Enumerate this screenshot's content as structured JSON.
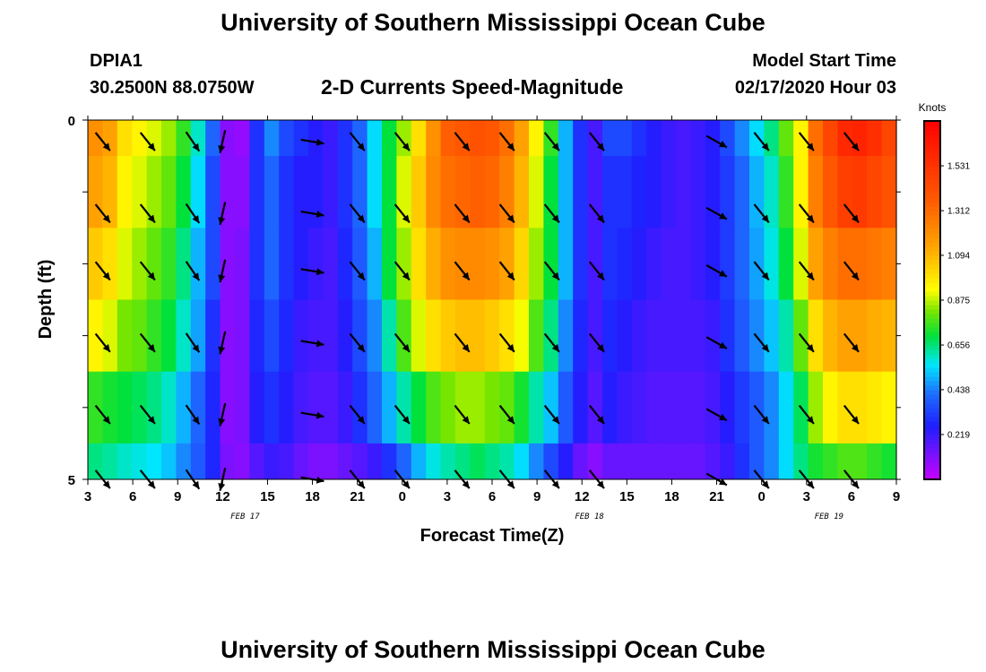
{
  "page": {
    "title_top": "University of Southern Mississippi Ocean Cube",
    "title_bottom": "University of Southern Mississippi Ocean Cube",
    "station_id": "DPIA1",
    "station_coords": "30.2500N 88.0750W",
    "plot_title": "2-D Currents Speed-Magnitude",
    "model_start_label": "Model Start Time",
    "model_start_value": "02/17/2020 Hour 03"
  },
  "chart_data": {
    "type": "heatmap",
    "title": "2-D Currents Speed-Magnitude",
    "xlabel": "Forecast Time(Z)",
    "ylabel": "Depth (ft)",
    "x_hours": [
      3,
      4,
      5,
      6,
      7,
      8,
      9,
      10,
      11,
      12,
      13,
      14,
      15,
      16,
      17,
      18,
      19,
      20,
      21,
      22,
      23,
      24,
      25,
      26,
      27,
      28,
      29,
      30,
      31,
      32,
      33,
      34,
      35,
      36,
      37,
      38,
      39,
      40,
      41,
      42,
      43,
      44,
      45,
      46,
      47,
      48,
      49,
      50,
      51,
      52,
      53,
      54,
      55,
      56,
      57
    ],
    "x_range": [
      3,
      57
    ],
    "x_ticks": [
      {
        "h": 3,
        "label": "3"
      },
      {
        "h": 6,
        "label": "6"
      },
      {
        "h": 9,
        "label": "9"
      },
      {
        "h": 12,
        "label": "12"
      },
      {
        "h": 15,
        "label": "15"
      },
      {
        "h": 18,
        "label": "18"
      },
      {
        "h": 21,
        "label": "21"
      },
      {
        "h": 24,
        "label": "0"
      },
      {
        "h": 27,
        "label": "3"
      },
      {
        "h": 30,
        "label": "6"
      },
      {
        "h": 33,
        "label": "9"
      },
      {
        "h": 36,
        "label": "12"
      },
      {
        "h": 39,
        "label": "15"
      },
      {
        "h": 42,
        "label": "18"
      },
      {
        "h": 45,
        "label": "21"
      },
      {
        "h": 48,
        "label": "0"
      },
      {
        "h": 51,
        "label": "3"
      },
      {
        "h": 54,
        "label": "6"
      },
      {
        "h": 57,
        "label": "9"
      }
    ],
    "date_labels": [
      {
        "h": 13.5,
        "label": "FEB 17"
      },
      {
        "h": 36.5,
        "label": "FEB 18"
      },
      {
        "h": 52.5,
        "label": "FEB 19"
      }
    ],
    "depth_range": [
      0,
      5
    ],
    "y_ticks": [
      {
        "d": 0,
        "label": "0"
      },
      {
        "d": 5,
        "label": "5"
      }
    ],
    "depth_levels": [
      0.5,
      1.5,
      2.5,
      3.5,
      4.5
    ],
    "speed_knots": [
      [
        1.2,
        1.15,
        1.0,
        0.95,
        0.9,
        0.85,
        0.75,
        0.6,
        0.4,
        0.1,
        0.08,
        0.3,
        0.45,
        0.35,
        0.3,
        0.25,
        0.22,
        0.3,
        0.4,
        0.55,
        0.7,
        0.85,
        1.0,
        1.2,
        1.35,
        1.38,
        1.4,
        1.38,
        1.3,
        1.15,
        0.95,
        0.75,
        0.5,
        0.3,
        0.2,
        0.35,
        0.35,
        0.3,
        0.25,
        0.22,
        0.2,
        0.22,
        0.25,
        0.35,
        0.45,
        0.55,
        0.65,
        0.8,
        0.95,
        1.3,
        1.45,
        1.58,
        1.6,
        1.55,
        1.45
      ],
      [
        1.15,
        1.1,
        0.95,
        0.9,
        0.85,
        0.8,
        0.7,
        0.55,
        0.35,
        0.1,
        0.1,
        0.3,
        0.4,
        0.3,
        0.25,
        0.25,
        0.22,
        0.3,
        0.4,
        0.55,
        0.7,
        0.9,
        1.05,
        1.22,
        1.3,
        1.33,
        1.35,
        1.33,
        1.25,
        1.1,
        0.9,
        0.7,
        0.5,
        0.3,
        0.2,
        0.3,
        0.3,
        0.27,
        0.25,
        0.22,
        0.2,
        0.22,
        0.25,
        0.32,
        0.4,
        0.5,
        0.6,
        0.75,
        0.95,
        1.25,
        1.38,
        1.48,
        1.5,
        1.45,
        1.4
      ],
      [
        1.05,
        1.0,
        0.9,
        0.85,
        0.8,
        0.75,
        0.65,
        0.5,
        0.35,
        0.1,
        0.12,
        0.3,
        0.4,
        0.3,
        0.25,
        0.22,
        0.2,
        0.28,
        0.38,
        0.5,
        0.7,
        0.85,
        1.0,
        1.12,
        1.2,
        1.22,
        1.22,
        1.2,
        1.15,
        1.02,
        0.85,
        0.7,
        0.5,
        0.3,
        0.2,
        0.3,
        0.28,
        0.25,
        0.22,
        0.2,
        0.2,
        0.22,
        0.25,
        0.32,
        0.4,
        0.48,
        0.58,
        0.7,
        0.9,
        1.15,
        1.25,
        1.3,
        1.3,
        1.28,
        1.25
      ],
      [
        0.95,
        0.9,
        0.82,
        0.8,
        0.75,
        0.7,
        0.6,
        0.48,
        0.3,
        0.1,
        0.12,
        0.28,
        0.35,
        0.28,
        0.22,
        0.2,
        0.2,
        0.25,
        0.35,
        0.45,
        0.62,
        0.78,
        0.9,
        1.0,
        1.05,
        1.08,
        1.08,
        1.05,
        1.0,
        0.92,
        0.78,
        0.65,
        0.45,
        0.28,
        0.2,
        0.28,
        0.25,
        0.22,
        0.2,
        0.2,
        0.2,
        0.2,
        0.22,
        0.3,
        0.38,
        0.45,
        0.52,
        0.62,
        0.8,
        1.0,
        1.1,
        1.15,
        1.15,
        1.12,
        1.1
      ],
      [
        0.75,
        0.72,
        0.7,
        0.68,
        0.65,
        0.6,
        0.5,
        0.4,
        0.28,
        0.1,
        0.12,
        0.25,
        0.3,
        0.25,
        0.2,
        0.18,
        0.18,
        0.22,
        0.3,
        0.4,
        0.5,
        0.62,
        0.7,
        0.78,
        0.82,
        0.85,
        0.85,
        0.82,
        0.8,
        0.72,
        0.62,
        0.52,
        0.38,
        0.25,
        0.18,
        0.25,
        0.22,
        0.2,
        0.18,
        0.18,
        0.18,
        0.18,
        0.2,
        0.25,
        0.32,
        0.38,
        0.45,
        0.55,
        0.68,
        0.85,
        0.95,
        1.0,
        1.0,
        0.98,
        0.95
      ],
      [
        0.65,
        0.63,
        0.6,
        0.58,
        0.56,
        0.52,
        0.45,
        0.38,
        0.28,
        0.12,
        0.1,
        0.18,
        0.22,
        0.2,
        0.15,
        0.12,
        0.12,
        0.15,
        0.18,
        0.22,
        0.3,
        0.4,
        0.5,
        0.58,
        0.62,
        0.65,
        0.68,
        0.65,
        0.62,
        0.55,
        0.45,
        0.35,
        0.25,
        0.15,
        0.1,
        0.15,
        0.15,
        0.15,
        0.15,
        0.15,
        0.15,
        0.15,
        0.18,
        0.22,
        0.3,
        0.38,
        0.45,
        0.55,
        0.65,
        0.72,
        0.75,
        0.78,
        0.78,
        0.75,
        0.72
      ]
    ],
    "speed_row_depths": [
      0,
      1,
      2,
      3,
      4,
      5
    ],
    "vector_rows": [
      0.2,
      1.2,
      2.0,
      3.0,
      4.0,
      4.9
    ],
    "vectors": [
      {
        "h": 4,
        "u": 0.6,
        "v": -0.75
      },
      {
        "h": 7,
        "u": 0.6,
        "v": -0.75
      },
      {
        "h": 10,
        "u": 0.55,
        "v": -0.8
      },
      {
        "h": 12,
        "u": -0.2,
        "v": -0.9
      },
      {
        "h": 18,
        "u": 0.9,
        "v": -0.15
      },
      {
        "h": 21,
        "u": 0.6,
        "v": -0.75
      },
      {
        "h": 24,
        "u": 0.6,
        "v": -0.75
      },
      {
        "h": 28,
        "u": 0.6,
        "v": -0.75
      },
      {
        "h": 31,
        "u": 0.6,
        "v": -0.75
      },
      {
        "h": 34,
        "u": 0.6,
        "v": -0.75
      },
      {
        "h": 37,
        "u": 0.6,
        "v": -0.75
      },
      {
        "h": 45,
        "u": 0.8,
        "v": -0.45
      },
      {
        "h": 48,
        "u": 0.6,
        "v": -0.75
      },
      {
        "h": 51,
        "u": 0.6,
        "v": -0.75
      },
      {
        "h": 54,
        "u": 0.6,
        "v": -0.75
      }
    ]
  },
  "colorbar": {
    "title": "Knots",
    "tick_labels": [
      "1.531",
      "1.312",
      "1.094",
      "0.875",
      "0.656",
      "0.438",
      "0.219"
    ],
    "tick_values": [
      1.531,
      1.312,
      1.094,
      0.875,
      0.656,
      0.438,
      0.219
    ],
    "min": 0.0,
    "max": 1.75
  }
}
